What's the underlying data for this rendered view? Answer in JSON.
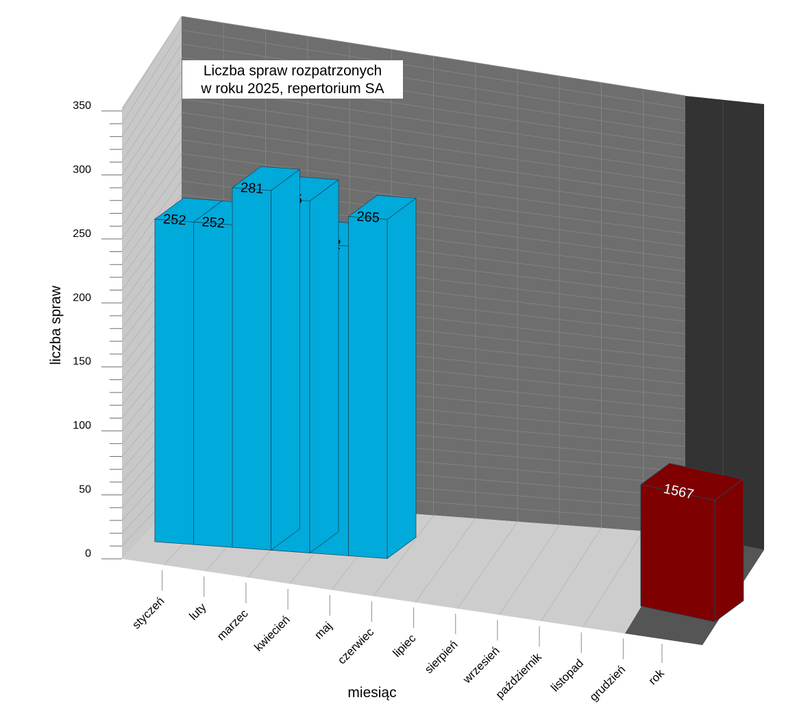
{
  "chart_data": {
    "type": "bar",
    "title_lines": [
      "Liczba spraw rozpatrzonych",
      "w roku 2025, repertorium SA"
    ],
    "xlabel": "miesiąc",
    "ylabel": "liczba spraw",
    "ylim": [
      0,
      350
    ],
    "ytick_step": 50,
    "yminor_step": 10,
    "categories": [
      "styczeń",
      "luty",
      "marzec",
      "kwiecień",
      "maj",
      "czerwiec",
      "lipiec",
      "sierpień",
      "wrzesień",
      "październik",
      "listopad",
      "grudzień"
    ],
    "series": [
      {
        "values": [
          252,
          252,
          281,
          275,
          242,
          265,
          null,
          null,
          null,
          null,
          null,
          null
        ]
      }
    ],
    "total": {
      "category": "rok",
      "value": 1567,
      "display_height": 95
    },
    "colors": {
      "bar_front": "#00AADB",
      "bar_top": "#00AADB",
      "bar_side": "#00AADB",
      "total_front": "#7F0000",
      "back_wall": "#6E6E6E",
      "side_wall": "#C8C8C8",
      "floor": "#CDCDCD",
      "total_wall": "#333333",
      "total_floor": "#555555"
    },
    "grid": true
  }
}
